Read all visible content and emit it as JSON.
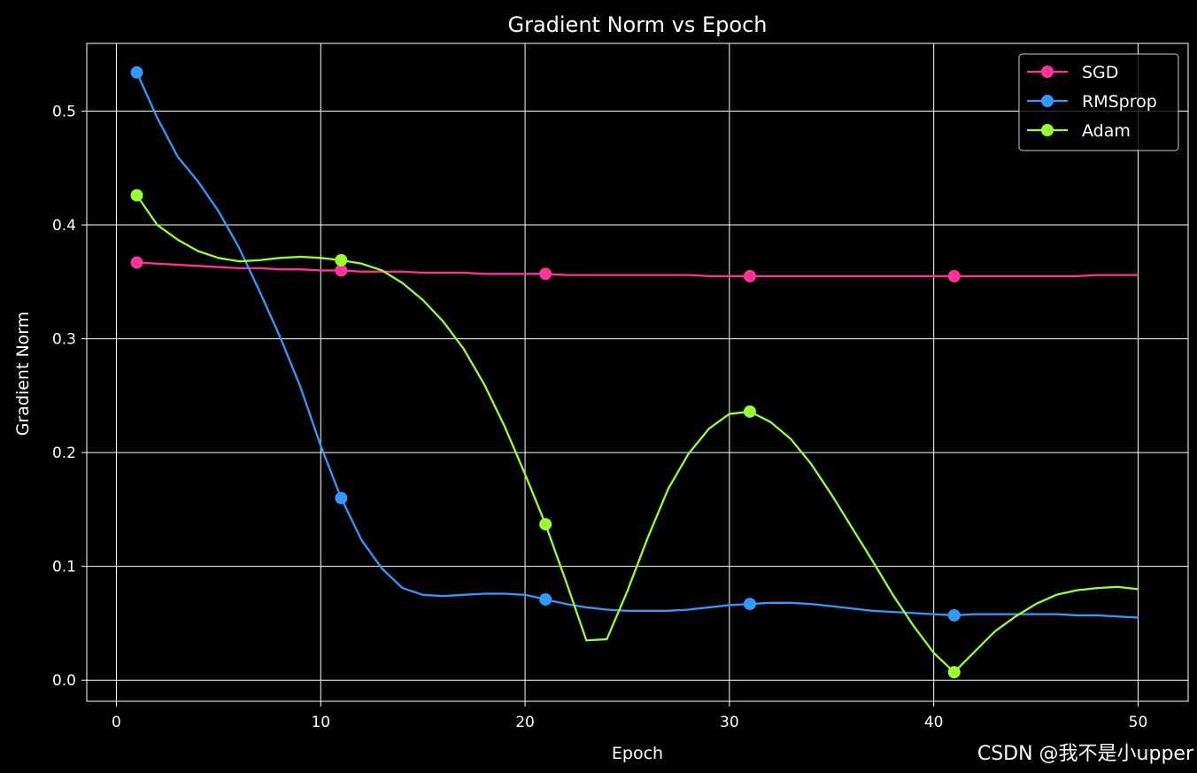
{
  "watermark": "CSDN @我不是小upper",
  "chart_data": {
    "type": "line",
    "title": "Gradient Norm vs Epoch",
    "xlabel": "Epoch",
    "ylabel": "Gradient Norm",
    "xlim": [
      -1.45,
      52.45
    ],
    "ylim": [
      -0.0185,
      0.5595
    ],
    "xticks": [
      0,
      10,
      20,
      30,
      40,
      50
    ],
    "xtick_labels": [
      "0",
      "10",
      "20",
      "30",
      "40",
      "50"
    ],
    "yticks": [
      0.0,
      0.1,
      0.2,
      0.3,
      0.4,
      0.5
    ],
    "ytick_labels": [
      "0.0",
      "0.1",
      "0.2",
      "0.3",
      "0.4",
      "0.5"
    ],
    "grid": true,
    "background": "#000000",
    "legend_position": "top-right",
    "marker_every": 10,
    "x": [
      1,
      2,
      3,
      4,
      5,
      6,
      7,
      8,
      9,
      10,
      11,
      12,
      13,
      14,
      15,
      16,
      17,
      18,
      19,
      20,
      21,
      22,
      23,
      24,
      25,
      26,
      27,
      28,
      29,
      30,
      31,
      32,
      33,
      34,
      35,
      36,
      37,
      38,
      39,
      40,
      41,
      42,
      43,
      44,
      45,
      46,
      47,
      48,
      49,
      50
    ],
    "series": [
      {
        "name": "SGD",
        "color": "#ff3399",
        "values": [
          0.367,
          0.366,
          0.365,
          0.364,
          0.363,
          0.362,
          0.362,
          0.361,
          0.361,
          0.36,
          0.36,
          0.359,
          0.359,
          0.359,
          0.358,
          0.358,
          0.358,
          0.357,
          0.357,
          0.357,
          0.357,
          0.356,
          0.356,
          0.356,
          0.356,
          0.356,
          0.356,
          0.356,
          0.355,
          0.355,
          0.355,
          0.355,
          0.355,
          0.355,
          0.355,
          0.355,
          0.355,
          0.355,
          0.355,
          0.355,
          0.355,
          0.355,
          0.355,
          0.355,
          0.355,
          0.355,
          0.355,
          0.356,
          0.356,
          0.356
        ]
      },
      {
        "name": "RMSprop",
        "color": "#3399ff",
        "values": [
          0.534,
          0.494,
          0.46,
          0.438,
          0.412,
          0.38,
          0.342,
          0.302,
          0.258,
          0.206,
          0.16,
          0.123,
          0.098,
          0.081,
          0.075,
          0.074,
          0.075,
          0.076,
          0.076,
          0.075,
          0.071,
          0.067,
          0.064,
          0.062,
          0.061,
          0.061,
          0.061,
          0.062,
          0.064,
          0.066,
          0.067,
          0.068,
          0.068,
          0.067,
          0.065,
          0.063,
          0.061,
          0.06,
          0.059,
          0.058,
          0.057,
          0.058,
          0.058,
          0.058,
          0.058,
          0.058,
          0.057,
          0.057,
          0.056,
          0.055
        ]
      },
      {
        "name": "Adam",
        "color": "#99ff33",
        "values": [
          0.426,
          0.4,
          0.387,
          0.377,
          0.371,
          0.368,
          0.369,
          0.371,
          0.372,
          0.371,
          0.369,
          0.366,
          0.36,
          0.349,
          0.334,
          0.315,
          0.291,
          0.26,
          0.223,
          0.181,
          0.137,
          0.087,
          0.035,
          0.036,
          0.078,
          0.125,
          0.168,
          0.199,
          0.221,
          0.234,
          0.236,
          0.227,
          0.212,
          0.19,
          0.163,
          0.134,
          0.105,
          0.075,
          0.048,
          0.024,
          0.007,
          0.025,
          0.043,
          0.056,
          0.067,
          0.075,
          0.079,
          0.081,
          0.082,
          0.08
        ]
      }
    ]
  }
}
